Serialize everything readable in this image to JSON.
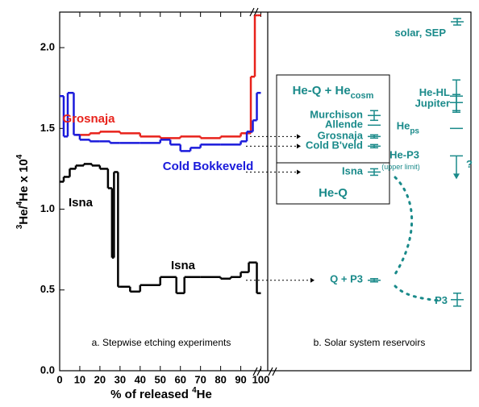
{
  "chart_data": {
    "type": "step",
    "y_label_parts": [
      "3",
      "He/",
      "4",
      "He x 10",
      "4"
    ],
    "x_label_parts": [
      "% of released ",
      "4",
      "He"
    ],
    "xlim": [
      0,
      103
    ],
    "xticks": [
      0,
      10,
      20,
      30,
      40,
      50,
      60,
      70,
      80,
      90,
      100
    ],
    "ylim": [
      0,
      2.22
    ],
    "yticks": [
      {
        "value": 0,
        "label": "0.0"
      },
      0.5,
      {
        "value": 1,
        "label": "1.0"
      },
      1.5,
      {
        "value": 2,
        "label": "2.0"
      }
    ],
    "series": [
      {
        "name": "Grosnaja",
        "color": "#e8221b",
        "bins": [
          8,
          15,
          20,
          30,
          40,
          50,
          60,
          70,
          80,
          90,
          95,
          97,
          98.5,
          100
        ],
        "values": [
          1.46,
          1.47,
          1.48,
          1.47,
          1.45,
          1.44,
          1.45,
          1.44,
          1.45,
          1.47,
          1.82,
          2.2,
          2.2
        ]
      },
      {
        "name": "Cold Bokkeveld",
        "color": "#1a1adb",
        "bins": [
          0,
          2,
          4,
          7,
          10,
          15,
          20,
          25,
          30,
          40,
          50,
          55,
          60,
          65,
          70,
          80,
          90,
          93,
          96,
          98,
          100
        ],
        "values": [
          1.7,
          1.45,
          1.72,
          1.46,
          1.43,
          1.42,
          1.42,
          1.41,
          1.41,
          1.41,
          1.43,
          1.4,
          1.36,
          1.38,
          1.4,
          1.4,
          1.42,
          1.48,
          1.55,
          1.72
        ]
      },
      {
        "name": "Isna",
        "color": "#000000",
        "bins": [
          0,
          2,
          5,
          8,
          12,
          16,
          20,
          24,
          26,
          27,
          29,
          30,
          35,
          40,
          50,
          58,
          62,
          70,
          80,
          85,
          90,
          94,
          98,
          100
        ],
        "values": [
          1.17,
          1.2,
          1.25,
          1.27,
          1.28,
          1.27,
          1.25,
          1.13,
          0.7,
          1.23,
          0.52,
          0.52,
          0.49,
          0.53,
          0.58,
          0.48,
          0.58,
          0.58,
          0.57,
          0.58,
          0.61,
          0.67,
          0.48
        ]
      }
    ],
    "series_labels": [
      "Grosnaja",
      "Cold Bokkeveld",
      "Isna",
      "Isna"
    ],
    "panel_labels": [
      "a. Stepwise etching experiments",
      "b. Solar system reservoirs"
    ],
    "box_title": {
      "text": "He-Q + He",
      "sub": "cosm"
    },
    "box_footer": "He-Q",
    "reservoir_color": "#1a8a8a",
    "reservoirs": [
      {
        "label": "solar, SEP",
        "value": 2.16,
        "error": 0.02
      },
      {
        "label": "He-HL",
        "value": 1.7,
        "error": 0.1
      },
      {
        "label": "Jupiter",
        "value": 1.66,
        "error": 0.05
      },
      {
        "label": "He",
        "sub": "ps",
        "value": 1.5,
        "error": 0.0
      },
      {
        "label": "He-P3",
        "value": 1.33,
        "error": 0.0,
        "note": "(upper limit)",
        "mark": "?"
      },
      {
        "label": "Murchison",
        "value": 1.58,
        "error": 0.03
      },
      {
        "label": "Allende",
        "value": 1.52,
        "error": 0.0
      },
      {
        "label": "Grosnaja",
        "value": 1.45,
        "error": 0.01
      },
      {
        "label": "Cold B'veld",
        "value": 1.39,
        "error": 0.01
      },
      {
        "label": "Isna",
        "value": 1.23,
        "error": 0.02
      },
      {
        "label": "Q + P3",
        "value": 0.56,
        "error": 0.01
      },
      {
        "label": "P3",
        "value": 0.44,
        "error": 0.04
      }
    ]
  }
}
